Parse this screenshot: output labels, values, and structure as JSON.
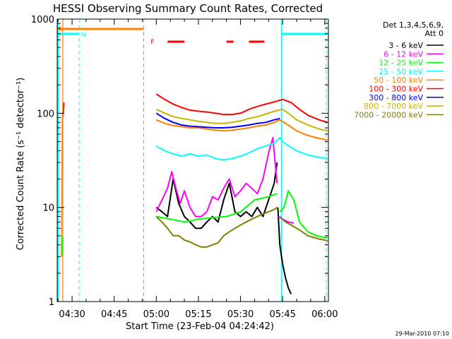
{
  "chart_data": {
    "type": "line",
    "title": "HESSI Observing Summary Count Rates, Corrected",
    "xlabel": "Start Time (23-Feb-04 04:24:42)",
    "ylabel": "Corrected Count Rate (s⁻¹ detector⁻¹)",
    "y_scale": "log",
    "ylim": [
      1,
      1000
    ],
    "xlim_minutes": [
      -5.3,
      91.3
    ],
    "x_tick_labels": [
      "04:30",
      "04:45",
      "05:00",
      "05:15",
      "05:30",
      "05:45",
      "06:00"
    ],
    "x_tick_minutes": [
      0,
      15,
      30,
      45,
      60,
      75,
      90
    ],
    "y_tick_labels": [
      "1",
      "10",
      "100",
      "1000"
    ],
    "y_tick_values": [
      1,
      10,
      100,
      1000
    ],
    "legend_title": "Det 1,3,4,5,6,9,",
    "legend_subtitle": "Att 0",
    "footer_date": "29-Mar-2010 07:10",
    "flag_labels": {
      "eclipse": "E",
      "saa": "N",
      "flare": "F"
    },
    "series": [
      {
        "name": "3 - 6 keV",
        "color": "#000000",
        "segments": [
          {
            "x": [
              30.0,
              32.0,
              34.0,
              36.0,
              38.0,
              40.0,
              42.0,
              44.0,
              46.0,
              48.0,
              50.0,
              52.0,
              54.0,
              56.0,
              58.0,
              60.0,
              62.0,
              64.0,
              66.0,
              68.0,
              70.0,
              72.0,
              73.0
            ],
            "y": [
              10,
              9,
              8,
              20,
              11,
              8,
              7,
              6,
              6,
              7,
              8,
              7,
              12,
              18,
              9,
              8,
              9,
              8,
              10,
              8,
              12,
              18,
              30
            ]
          },
          {
            "x": [
              73.3,
              74.0,
              75.0,
              76.0,
              77.0,
              78.0
            ],
            "y": [
              10,
              4,
              2.5,
              1.8,
              1.4,
              1.2
            ]
          }
        ]
      },
      {
        "name": "6 - 12 keV",
        "color": "#ff00ff",
        "segments": [
          {
            "x": [
              30.0,
              32.0,
              34.0,
              35.5,
              37.0,
              38.5,
              40.0,
              42.0,
              44.0,
              46.0,
              48.0,
              50.0,
              52.0,
              54.0,
              56.0,
              58.0,
              60.0,
              62.0,
              64.0,
              66.0,
              68.0,
              70.0,
              71.5,
              73.0
            ],
            "y": [
              9,
              12,
              16,
              24,
              16,
              11,
              15,
              10,
              8,
              8,
              9,
              13,
              12,
              16,
              20,
              13,
              15,
              18,
              16,
              14,
              20,
              38,
              55,
              18
            ]
          },
          {
            "x": [
              73.5,
              75.0,
              77.0,
              79.0
            ],
            "y": [
              8,
              7.5,
              7,
              6.8
            ]
          }
        ]
      },
      {
        "name": "12 - 25 keV",
        "color": "#00ff00",
        "segments": [
          {
            "x": [
              30.0,
              35.0,
              40.0,
              45.0,
              50.0,
              55.0,
              60.0,
              65.0,
              70.0,
              73.0
            ],
            "y": [
              8,
              7.5,
              7,
              7.5,
              7.8,
              8,
              9,
              12,
              13,
              14
            ]
          },
          {
            "x": [
              74.0,
              75.5,
              77.0,
              79.0,
              81.0,
              84.0,
              87.0,
              90.0,
              91.0
            ],
            "y": [
              9,
              10,
              15,
              12,
              7,
              5.5,
              5,
              4.8,
              4.8
            ]
          }
        ]
      },
      {
        "name": "25 - 50 keV",
        "color": "#00ffff",
        "segments": [
          {
            "x": [
              30.0,
              33.0,
              36.0,
              39.0,
              42.0,
              45.0,
              48.0,
              51.0,
              54.0,
              57.0,
              60.0,
              63.0,
              66.0,
              69.0,
              72.0,
              74.0,
              75.0,
              77.0,
              80.0,
              84.0,
              88.0,
              91.0
            ],
            "y": [
              45,
              40,
              37,
              35,
              37,
              35,
              36,
              33,
              32,
              33,
              35,
              38,
              42,
              45,
              48,
              55,
              50,
              45,
              40,
              36,
              34,
              33
            ]
          }
        ]
      },
      {
        "name": "50 - 100 keV",
        "color": "#ff8000",
        "segments": [
          {
            "x": [
              30.0,
              33.0,
              36.0,
              39.0,
              42.0,
              45.0,
              48.0,
              51.0,
              54.0,
              57.0,
              60.0,
              63.0,
              66.0,
              69.0,
              72.0,
              74.0,
              77.0,
              80.0,
              84.0,
              88.0,
              91.0
            ],
            "y": [
              85,
              78,
              74,
              72,
              70,
              70,
              68,
              66,
              65,
              66,
              68,
              70,
              73,
              75,
              80,
              85,
              75,
              65,
              58,
              54,
              52
            ]
          }
        ]
      },
      {
        "name": "100 - 300 keV",
        "color": "#ff0000",
        "segments": [
          {
            "x": [
              30.0,
              33.0,
              36.0,
              39.0,
              42.0,
              45.0,
              48.0,
              51.0,
              54.0,
              57.0,
              60.0,
              63.0,
              66.0,
              69.0,
              72.0,
              75.0,
              78.0,
              81.0,
              84.0,
              88.0,
              91.0
            ],
            "y": [
              160,
              140,
              125,
              115,
              108,
              105,
              103,
              100,
              97,
              97,
              100,
              110,
              118,
              125,
              132,
              140,
              130,
              110,
              95,
              85,
              80
            ]
          }
        ]
      },
      {
        "name": "300 - 800 keV",
        "color": "#0000ff",
        "segments": [
          {
            "x": [
              30.0,
              33.0,
              36.0,
              39.0,
              42.0,
              45.0,
              48.0,
              51.0,
              54.0,
              57.0,
              60.0,
              63.0,
              66.0,
              69.0,
              72.0,
              74.0
            ],
            "y": [
              100,
              88,
              80,
              75,
              73,
              72,
              71,
              70,
              70,
              71,
              73,
              75,
              78,
              80,
              85,
              88
            ]
          }
        ]
      },
      {
        "name": "800 - 7000 keV",
        "color": "#c8b400",
        "segments": [
          {
            "x": [
              30.0,
              33.0,
              36.0,
              39.0,
              42.0,
              45.0,
              48.0,
              51.0,
              54.0,
              57.0,
              60.0,
              63.0,
              66.0,
              69.0,
              72.0,
              75.0,
              77.0,
              80.0,
              84.0,
              88.0,
              91.0
            ],
            "y": [
              110,
              100,
              92,
              88,
              85,
              82,
              80,
              78,
              78,
              80,
              83,
              88,
              92,
              98,
              105,
              110,
              100,
              85,
              75,
              68,
              65
            ]
          }
        ]
      },
      {
        "name": "7000 - 20000 keV",
        "color": "#808000",
        "segments": [
          {
            "x": [
              30.0,
              32.0,
              34.0,
              36.0,
              38.0,
              40.0,
              42.0,
              44.0,
              46.0,
              48.0,
              50.0,
              52.0,
              54.0,
              56.0,
              58.0,
              60.0,
              62.0,
              64.0,
              66.0,
              68.0,
              70.0,
              72.0,
              73.0
            ],
            "y": [
              8,
              7,
              6,
              5,
              5,
              4.5,
              4.3,
              4,
              3.8,
              3.8,
              4,
              4.2,
              5,
              5.5,
              6,
              6.5,
              7,
              7.5,
              8,
              8.5,
              9,
              9.5,
              10
            ]
          },
          {
            "x": [
              74.0,
              76.0,
              78.0,
              80.0,
              82.0,
              84.0,
              86.0,
              88.0,
              90.0,
              91.0
            ],
            "y": [
              8,
              7,
              6.5,
              6,
              5.5,
              5,
              4.8,
              4.6,
              4.5,
              4.4
            ]
          }
        ]
      }
    ],
    "left_spike_series": [
      {
        "color": "#ff8000",
        "x": [
          -3.8,
          -3.5,
          -3.2,
          -2.8
        ],
        "y": [
          3,
          100,
          90,
          130
        ]
      },
      {
        "color": "#00ff00",
        "x": [
          -3.6,
          -3.3
        ],
        "y": [
          3,
          5
        ]
      },
      {
        "color": "#ff0000",
        "x": [
          -3.2,
          -2.9
        ],
        "y": [
          100,
          130
        ]
      }
    ],
    "flags": {
      "saa": [
        [
          -5.3,
          2.5
        ],
        [
          74.6,
          91.0
        ]
      ],
      "eclipse": [
        [
          -5.3,
          25.5
        ]
      ],
      "flare": [
        [
          34.0,
          40.0
        ],
        [
          55.0,
          57.5
        ],
        [
          63.0,
          68.5
        ]
      ]
    },
    "verticals": [
      {
        "kind": "cyan_solid",
        "minutes": -5.0
      },
      {
        "kind": "cyan_solid",
        "minutes": 74.6
      },
      {
        "kind": "cyan_dashed",
        "minutes": 2.5
      },
      {
        "kind": "cyan_dashed",
        "minutes": 90.5
      },
      {
        "kind": "orange_dashed",
        "minutes": 25.5
      },
      {
        "kind": "orange_solid",
        "minutes": -3.3
      }
    ],
    "grid": false,
    "legend_position": "right"
  }
}
